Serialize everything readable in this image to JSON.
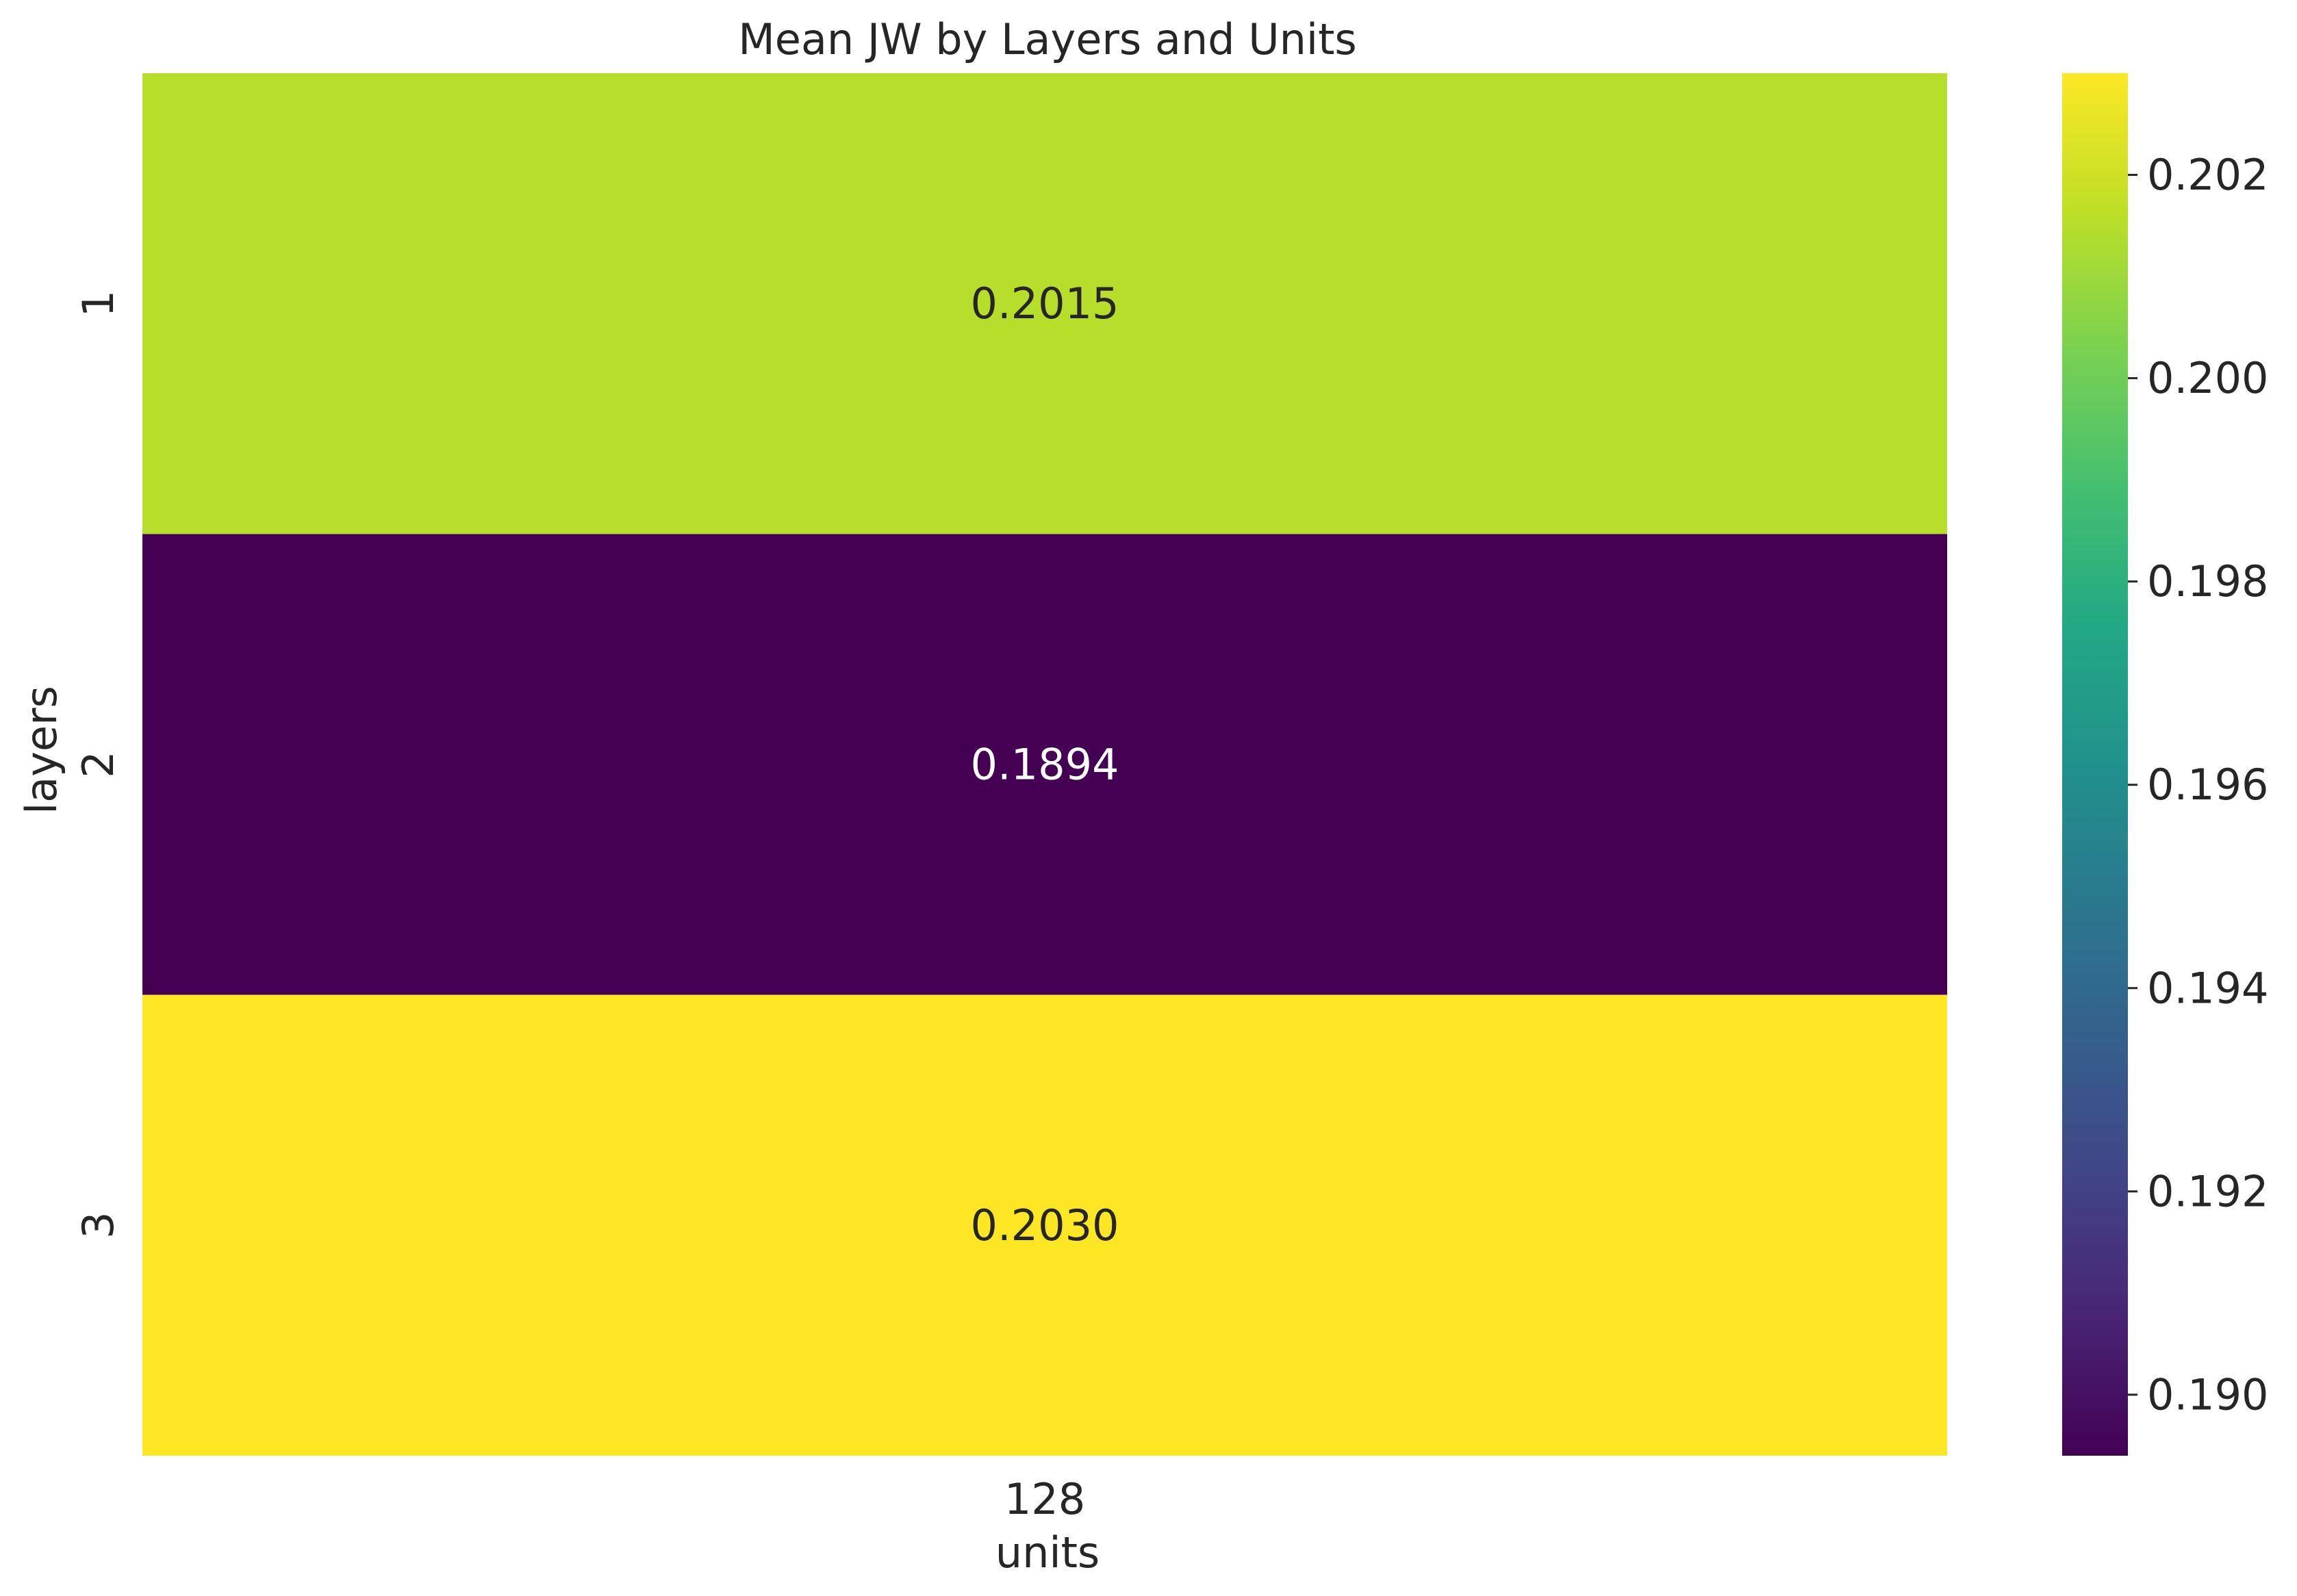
{
  "chart_data": {
    "type": "heatmap",
    "title": "Mean JW by Layers and Units",
    "xlabel": "units",
    "ylabel": "layers",
    "x_categories": [
      "128"
    ],
    "y_categories": [
      "1",
      "2",
      "3"
    ],
    "values": [
      [
        0.2015
      ],
      [
        0.1894
      ],
      [
        0.203
      ]
    ],
    "cell_labels": [
      [
        "0.2015"
      ],
      [
        "0.1894"
      ],
      [
        "0.2030"
      ]
    ],
    "colormap": "viridis",
    "colorbar": {
      "range": [
        0.1894,
        0.203
      ],
      "ticks": [
        0.19,
        0.192,
        0.194,
        0.196,
        0.198,
        0.2,
        0.202
      ],
      "tick_labels": [
        "0.190",
        "0.192",
        "0.194",
        "0.196",
        "0.198",
        "0.200",
        "0.202"
      ]
    }
  }
}
